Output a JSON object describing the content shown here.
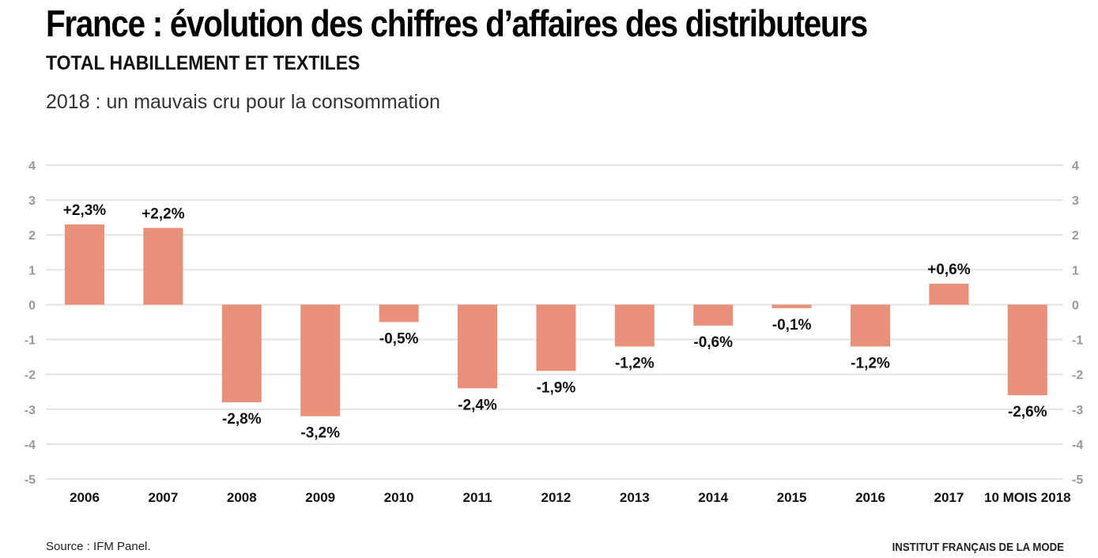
{
  "header": {
    "title": "France : évolution des chiffres d’affaires des distributeurs",
    "subtitle": "TOTAL HABILLEMENT ET TEXTILES",
    "description": "2018 : un mauvais cru pour la consommation"
  },
  "footer": {
    "source": "Source : IFM Panel.",
    "credit": "INSTITUT FRANÇAIS DE LA MODE"
  },
  "chart_data": {
    "type": "bar",
    "categories": [
      "2006",
      "2007",
      "2008",
      "2009",
      "2010",
      "2011",
      "2012",
      "2013",
      "2014",
      "2015",
      "2016",
      "2017",
      "10 MOIS 2018"
    ],
    "values": [
      2.3,
      2.2,
      -2.8,
      -3.2,
      -0.5,
      -2.4,
      -1.9,
      -1.2,
      -0.6,
      -0.1,
      -1.2,
      0.6,
      -2.6
    ],
    "data_labels": [
      "+2,3%",
      "+2,2%",
      "-2,8%",
      "-3,2%",
      "-0,5%",
      "-2,4%",
      "-1,9%",
      "-1,2%",
      "-0,6%",
      "-0,1%",
      "-1,2%",
      "+0,6%",
      "-2,6%"
    ],
    "ylim": [
      -5,
      4
    ],
    "yticks": [
      "4",
      "3",
      "2",
      "1",
      "0",
      "-1",
      "-2",
      "-3",
      "-4",
      "-5"
    ],
    "grid": true,
    "bar_color": "#e8907a",
    "xlabel": "",
    "ylabel": ""
  }
}
